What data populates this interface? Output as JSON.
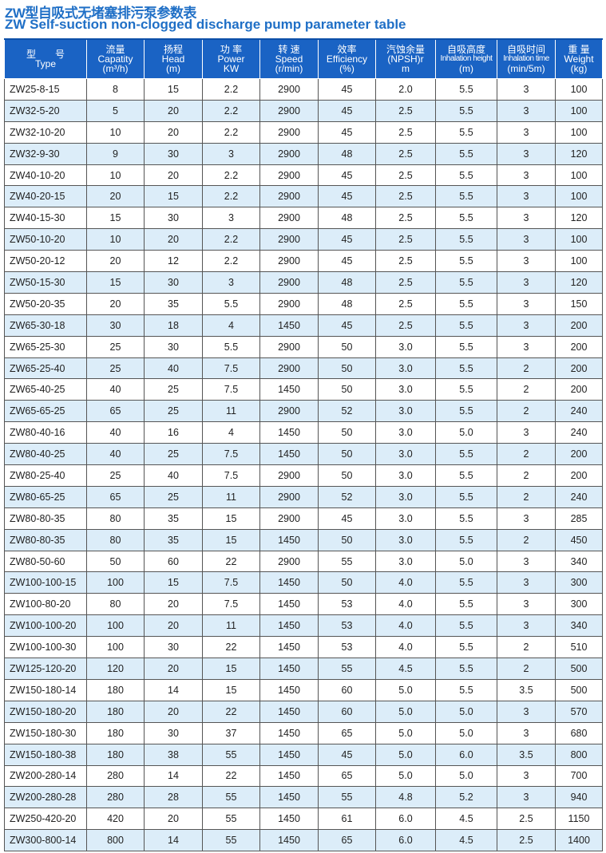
{
  "title_cn": "ZW型自吸式无堵塞排污泵参数表",
  "title_en": "ZW Self-suction non-clogged discharge pump parameter table",
  "columns": [
    {
      "cn": "型　　号",
      "en": "Type",
      "unit": ""
    },
    {
      "cn": "流量",
      "en": "Capatity",
      "unit": "(m³/h)"
    },
    {
      "cn": "扬程",
      "en": "Head",
      "unit": "(m)"
    },
    {
      "cn": "功 率",
      "en": "Power",
      "unit": "KW"
    },
    {
      "cn": "转 速",
      "en": "Speed",
      "unit": "(r/min)"
    },
    {
      "cn": "效率",
      "en": "Efficiency",
      "unit": "(%)"
    },
    {
      "cn": "汽蚀余量",
      "en": "(NPSH)r",
      "unit": "m"
    },
    {
      "cn": "自吸高度",
      "en": "Inhalation height",
      "unit": "(m)"
    },
    {
      "cn": "自吸时间",
      "en": "Inhalation time",
      "unit": "(min/5m)"
    },
    {
      "cn": "重 量",
      "en": "Weight",
      "unit": "(kg)"
    }
  ],
  "rows": [
    [
      "ZW25-8-15",
      "8",
      "15",
      "2.2",
      "2900",
      "45",
      "2.0",
      "5.5",
      "3",
      "100"
    ],
    [
      "ZW32-5-20",
      "5",
      "20",
      "2.2",
      "2900",
      "45",
      "2.5",
      "5.5",
      "3",
      "100"
    ],
    [
      "ZW32-10-20",
      "10",
      "20",
      "2.2",
      "2900",
      "45",
      "2.5",
      "5.5",
      "3",
      "100"
    ],
    [
      "ZW32-9-30",
      "9",
      "30",
      "3",
      "2900",
      "48",
      "2.5",
      "5.5",
      "3",
      "120"
    ],
    [
      "ZW40-10-20",
      "10",
      "20",
      "2.2",
      "2900",
      "45",
      "2.5",
      "5.5",
      "3",
      "100"
    ],
    [
      "ZW40-20-15",
      "20",
      "15",
      "2.2",
      "2900",
      "45",
      "2.5",
      "5.5",
      "3",
      "100"
    ],
    [
      "ZW40-15-30",
      "15",
      "30",
      "3",
      "2900",
      "48",
      "2.5",
      "5.5",
      "3",
      "120"
    ],
    [
      "ZW50-10-20",
      "10",
      "20",
      "2.2",
      "2900",
      "45",
      "2.5",
      "5.5",
      "3",
      "100"
    ],
    [
      "ZW50-20-12",
      "20",
      "12",
      "2.2",
      "2900",
      "45",
      "2.5",
      "5.5",
      "3",
      "100"
    ],
    [
      "ZW50-15-30",
      "15",
      "30",
      "3",
      "2900",
      "48",
      "2.5",
      "5.5",
      "3",
      "120"
    ],
    [
      "ZW50-20-35",
      "20",
      "35",
      "5.5",
      "2900",
      "48",
      "2.5",
      "5.5",
      "3",
      "150"
    ],
    [
      "ZW65-30-18",
      "30",
      "18",
      "4",
      "1450",
      "45",
      "2.5",
      "5.5",
      "3",
      "200"
    ],
    [
      "ZW65-25-30",
      "25",
      "30",
      "5.5",
      "2900",
      "50",
      "3.0",
      "5.5",
      "3",
      "200"
    ],
    [
      "ZW65-25-40",
      "25",
      "40",
      "7.5",
      "2900",
      "50",
      "3.0",
      "5.5",
      "2",
      "200"
    ],
    [
      "ZW65-40-25",
      "40",
      "25",
      "7.5",
      "1450",
      "50",
      "3.0",
      "5.5",
      "2",
      "200"
    ],
    [
      "ZW65-65-25",
      "65",
      "25",
      "11",
      "2900",
      "52",
      "3.0",
      "5.5",
      "2",
      "240"
    ],
    [
      "ZW80-40-16",
      "40",
      "16",
      "4",
      "1450",
      "50",
      "3.0",
      "5.0",
      "3",
      "240"
    ],
    [
      "ZW80-40-25",
      "40",
      "25",
      "7.5",
      "1450",
      "50",
      "3.0",
      "5.5",
      "2",
      "200"
    ],
    [
      "ZW80-25-40",
      "25",
      "40",
      "7.5",
      "2900",
      "50",
      "3.0",
      "5.5",
      "2",
      "200"
    ],
    [
      "ZW80-65-25",
      "65",
      "25",
      "11",
      "2900",
      "52",
      "3.0",
      "5.5",
      "2",
      "240"
    ],
    [
      "ZW80-80-35",
      "80",
      "35",
      "15",
      "2900",
      "45",
      "3.0",
      "5.5",
      "3",
      "285"
    ],
    [
      "ZW80-80-35",
      "80",
      "35",
      "15",
      "1450",
      "50",
      "3.0",
      "5.5",
      "2",
      "450"
    ],
    [
      "ZW80-50-60",
      "50",
      "60",
      "22",
      "2900",
      "55",
      "3.0",
      "5.0",
      "3",
      "340"
    ],
    [
      "ZW100-100-15",
      "100",
      "15",
      "7.5",
      "1450",
      "50",
      "4.0",
      "5.5",
      "3",
      "300"
    ],
    [
      "ZW100-80-20",
      "80",
      "20",
      "7.5",
      "1450",
      "53",
      "4.0",
      "5.5",
      "3",
      "300"
    ],
    [
      "ZW100-100-20",
      "100",
      "20",
      "11",
      "1450",
      "53",
      "4.0",
      "5.5",
      "3",
      "340"
    ],
    [
      "ZW100-100-30",
      "100",
      "30",
      "22",
      "1450",
      "53",
      "4.0",
      "5.5",
      "2",
      "510"
    ],
    [
      "ZW125-120-20",
      "120",
      "20",
      "15",
      "1450",
      "55",
      "4.5",
      "5.5",
      "2",
      "500"
    ],
    [
      "ZW150-180-14",
      "180",
      "14",
      "15",
      "1450",
      "60",
      "5.0",
      "5.5",
      "3.5",
      "500"
    ],
    [
      "ZW150-180-20",
      "180",
      "20",
      "22",
      "1450",
      "60",
      "5.0",
      "5.0",
      "3",
      "570"
    ],
    [
      "ZW150-180-30",
      "180",
      "30",
      "37",
      "1450",
      "65",
      "5.0",
      "5.0",
      "3",
      "680"
    ],
    [
      "ZW150-180-38",
      "180",
      "38",
      "55",
      "1450",
      "45",
      "5.0",
      "6.0",
      "3.5",
      "800"
    ],
    [
      "ZW200-280-14",
      "280",
      "14",
      "22",
      "1450",
      "65",
      "5.0",
      "5.0",
      "3",
      "700"
    ],
    [
      "ZW200-280-28",
      "280",
      "28",
      "55",
      "1450",
      "55",
      "4.8",
      "5.2",
      "3",
      "940"
    ],
    [
      "ZW250-420-20",
      "420",
      "20",
      "55",
      "1450",
      "61",
      "6.0",
      "4.5",
      "2.5",
      "1150"
    ],
    [
      "ZW300-800-14",
      "800",
      "14",
      "55",
      "1450",
      "65",
      "6.0",
      "4.5",
      "2.5",
      "1400"
    ]
  ]
}
